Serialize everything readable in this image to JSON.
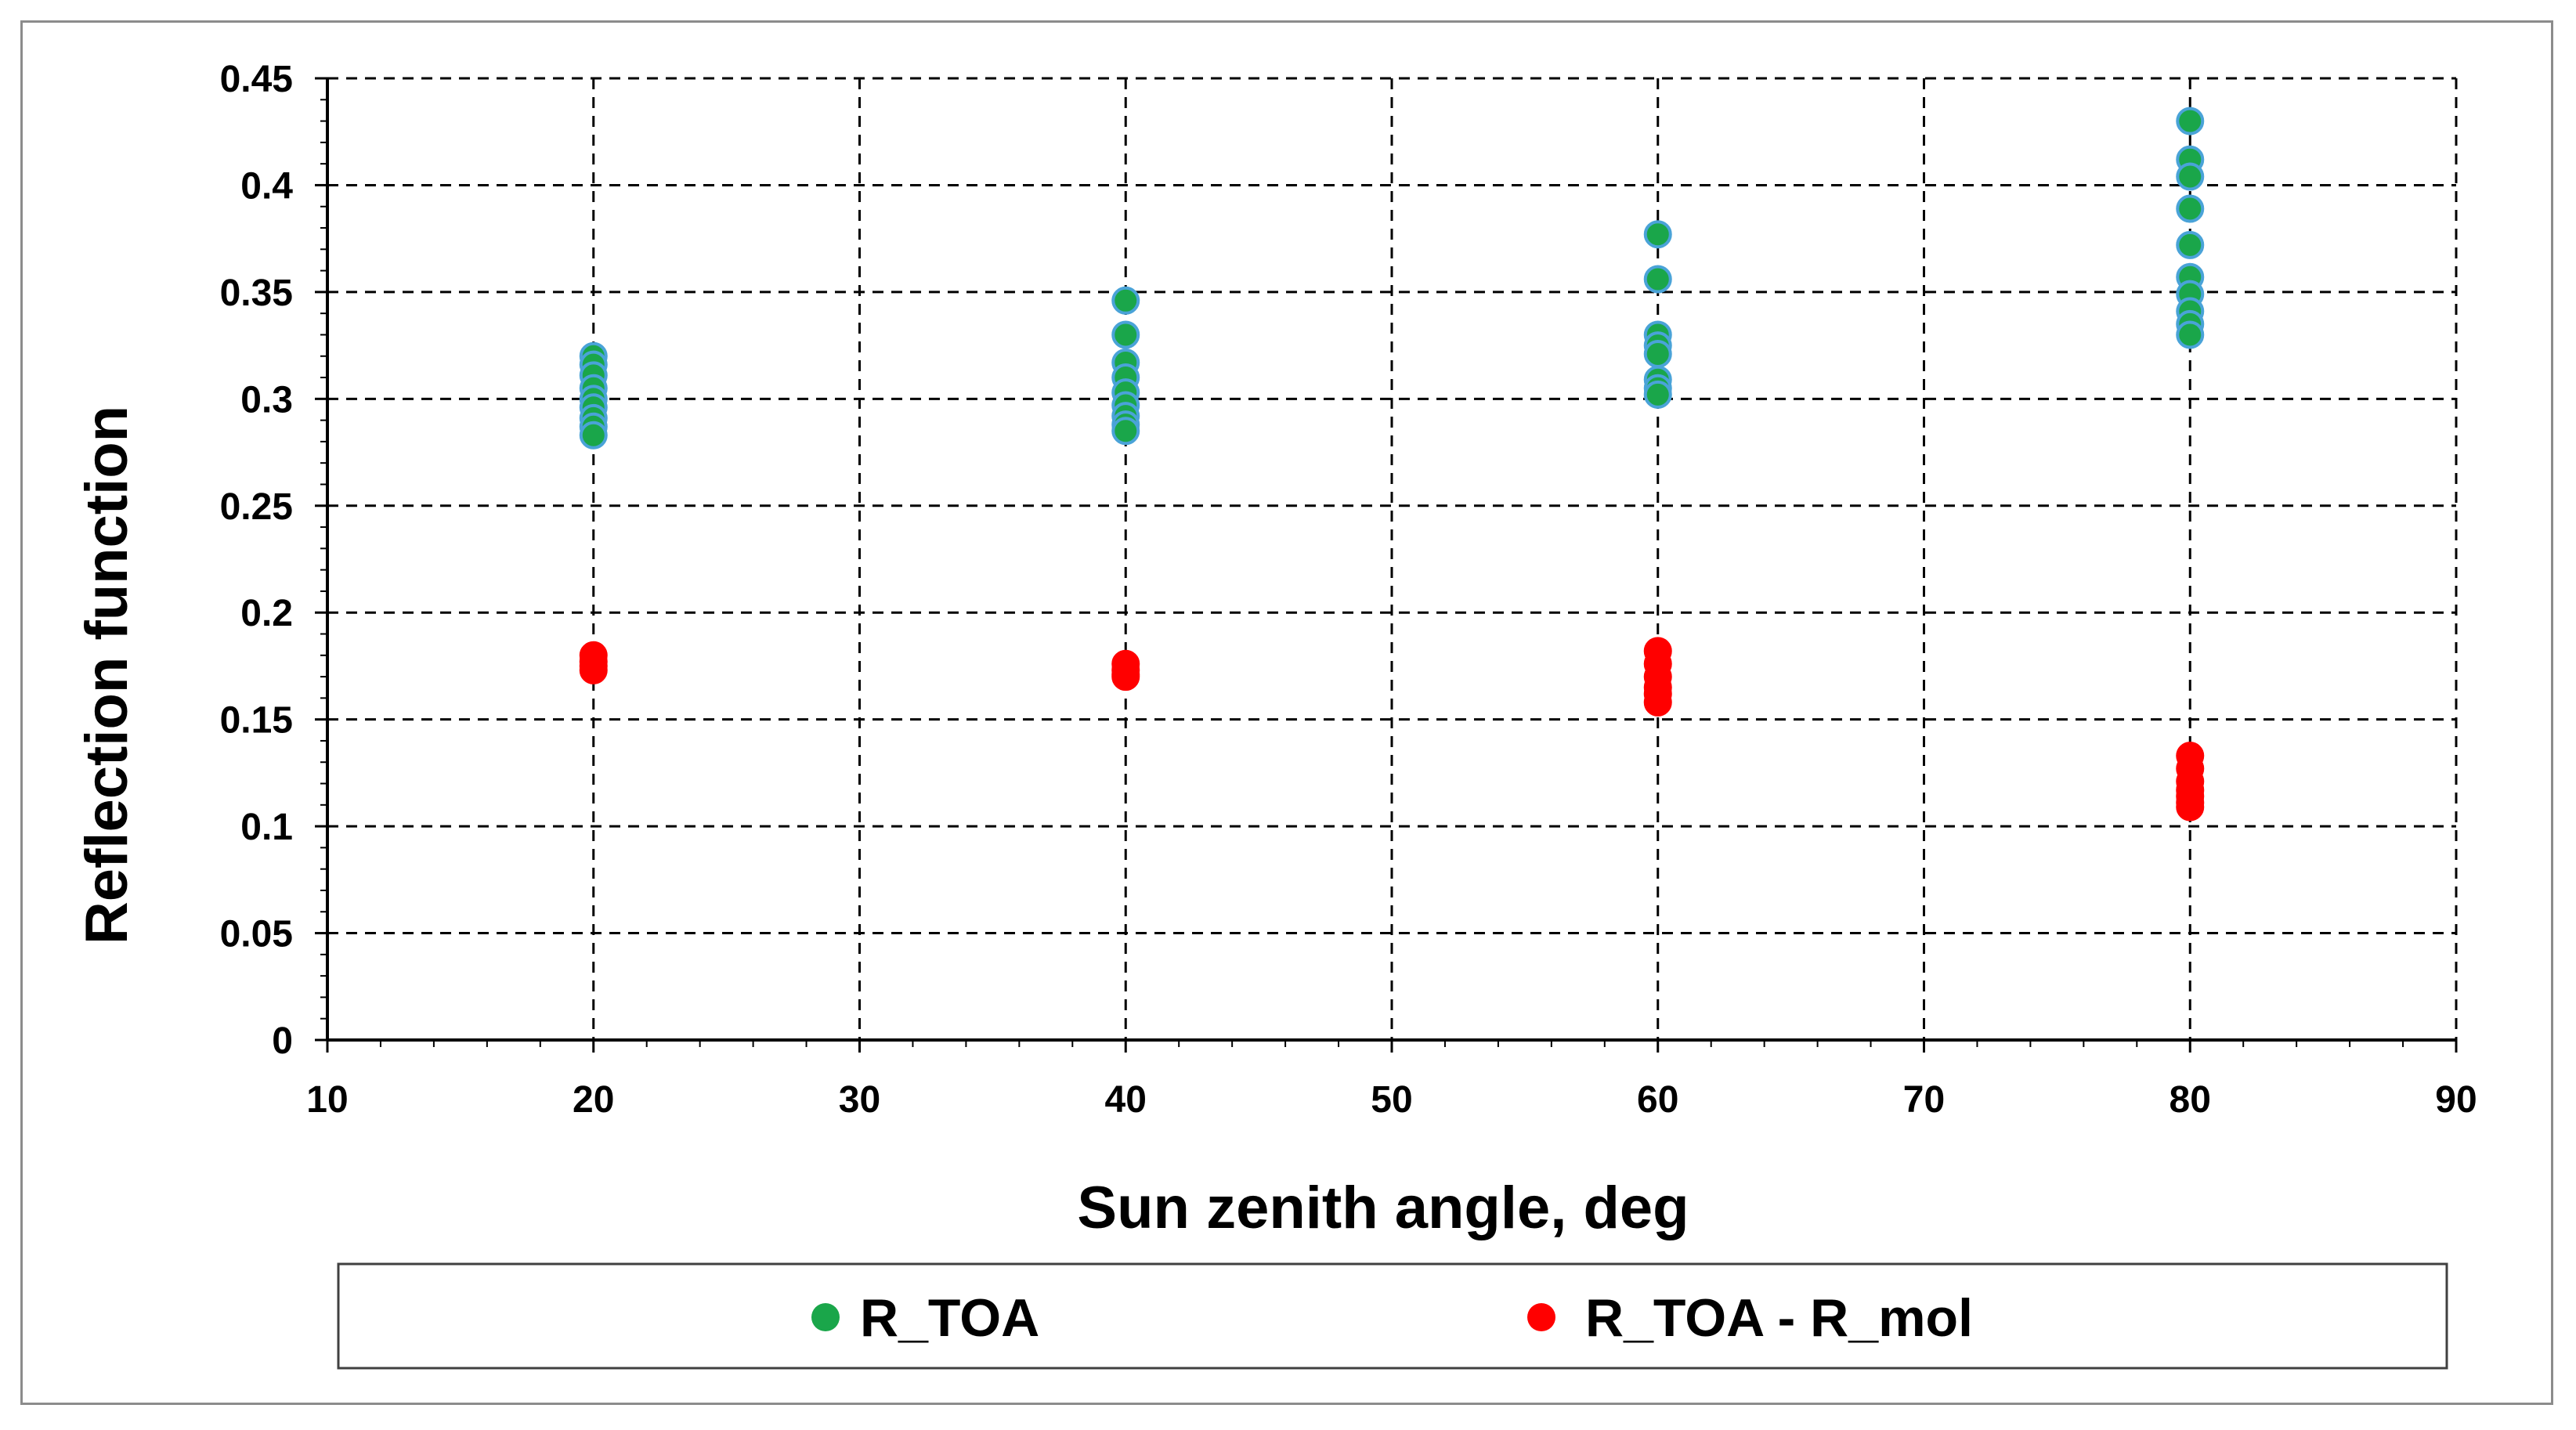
{
  "chart_data": {
    "type": "scatter",
    "title": "",
    "xlabel": "Sun zenith angle, deg",
    "ylabel": "Reflection function",
    "xlim": [
      10,
      90
    ],
    "ylim": [
      0,
      0.45
    ],
    "xticks": [
      10,
      20,
      30,
      40,
      50,
      60,
      70,
      80,
      90
    ],
    "yticks": [
      0,
      0.05,
      0.1,
      0.15,
      0.2,
      0.25,
      0.3,
      0.35,
      0.4,
      0.45
    ],
    "xtick_labels": [
      "10",
      "20",
      "30",
      "40",
      "50",
      "60",
      "70",
      "80",
      "90"
    ],
    "ytick_labels": [
      "0",
      "0.05",
      "0.1",
      "0.15",
      "0.2",
      "0.25",
      "0.3",
      "0.35",
      "0.4",
      "0.45"
    ],
    "grid": true,
    "legend_position": "bottom",
    "series": [
      {
        "name": "R_TOA",
        "color": "#1aa64a",
        "edge_color": "#4aa3d8",
        "points": [
          [
            20,
            0.32
          ],
          [
            20,
            0.316
          ],
          [
            20,
            0.311
          ],
          [
            20,
            0.305
          ],
          [
            20,
            0.3
          ],
          [
            20,
            0.296
          ],
          [
            20,
            0.291
          ],
          [
            20,
            0.287
          ],
          [
            20,
            0.283
          ],
          [
            40,
            0.346
          ],
          [
            40,
            0.33
          ],
          [
            40,
            0.317
          ],
          [
            40,
            0.31
          ],
          [
            40,
            0.303
          ],
          [
            40,
            0.297
          ],
          [
            40,
            0.292
          ],
          [
            40,
            0.288
          ],
          [
            40,
            0.285
          ],
          [
            60,
            0.377
          ],
          [
            60,
            0.356
          ],
          [
            60,
            0.33
          ],
          [
            60,
            0.325
          ],
          [
            60,
            0.321
          ],
          [
            60,
            0.309
          ],
          [
            60,
            0.305
          ],
          [
            60,
            0.302
          ],
          [
            80,
            0.43
          ],
          [
            80,
            0.412
          ],
          [
            80,
            0.404
          ],
          [
            80,
            0.389
          ],
          [
            80,
            0.372
          ],
          [
            80,
            0.357
          ],
          [
            80,
            0.349
          ],
          [
            80,
            0.341
          ],
          [
            80,
            0.335
          ],
          [
            80,
            0.33
          ]
        ]
      },
      {
        "name": "R_TOA - R_mol",
        "color": "#ff0000",
        "edge_color": "#ff0000",
        "points": [
          [
            20,
            0.18
          ],
          [
            20,
            0.177
          ],
          [
            20,
            0.175
          ],
          [
            20,
            0.173
          ],
          [
            40,
            0.176
          ],
          [
            40,
            0.173
          ],
          [
            40,
            0.171
          ],
          [
            40,
            0.17
          ],
          [
            60,
            0.182
          ],
          [
            60,
            0.176
          ],
          [
            60,
            0.17
          ],
          [
            60,
            0.165
          ],
          [
            60,
            0.162
          ],
          [
            60,
            0.158
          ],
          [
            80,
            0.133
          ],
          [
            80,
            0.127
          ],
          [
            80,
            0.121
          ],
          [
            80,
            0.117
          ],
          [
            80,
            0.114
          ],
          [
            80,
            0.111
          ],
          [
            80,
            0.109
          ]
        ]
      }
    ]
  }
}
